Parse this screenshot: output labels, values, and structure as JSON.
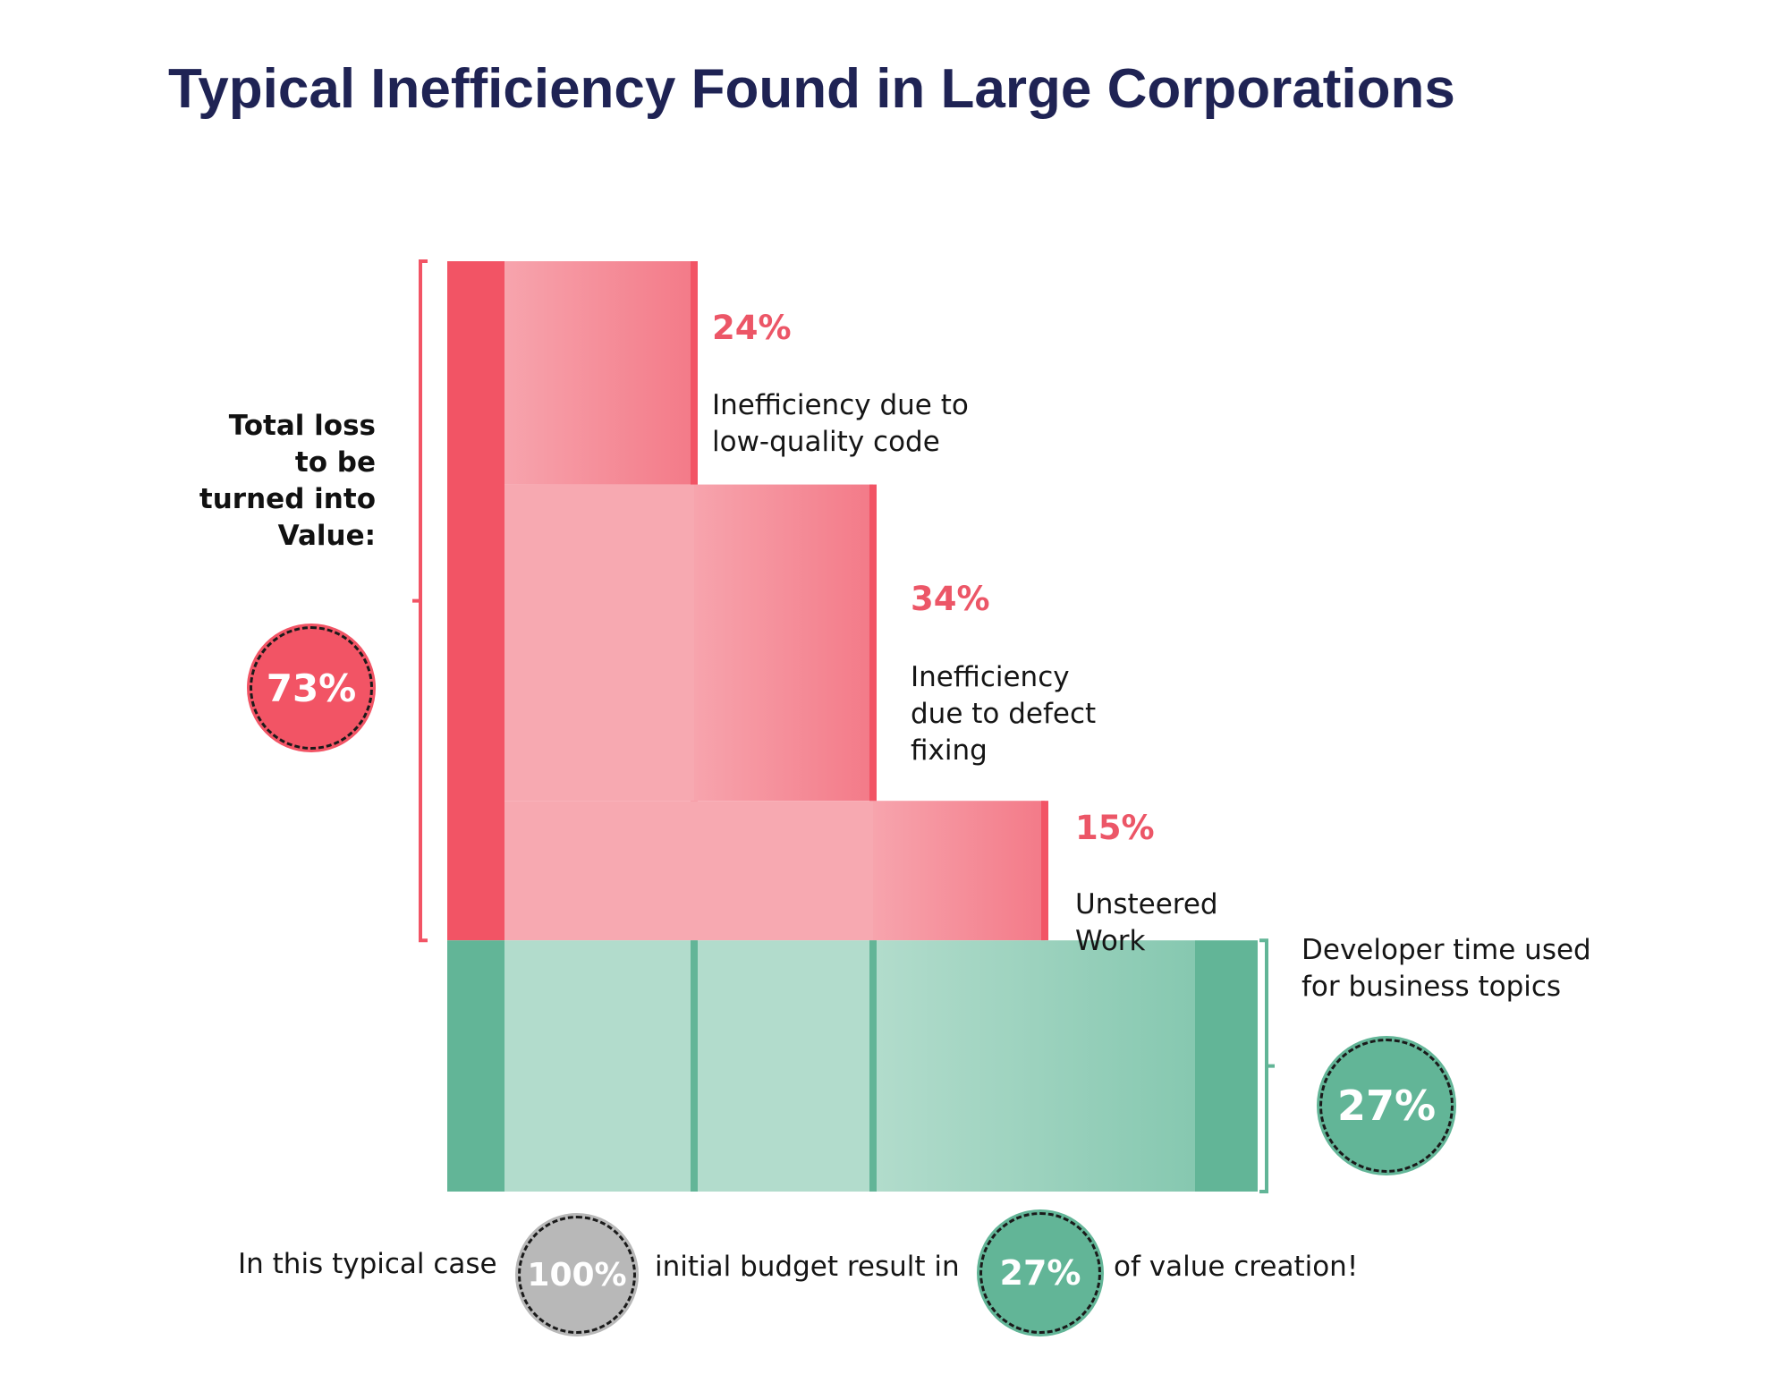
{
  "title": "Typical Inefficiency Found in Large Corporations",
  "loss_label": "Total loss\nto be\nturned into\nValue:",
  "loss_badge": "73%",
  "value_label": "Developer time used\nfor business topics",
  "value_badge": "27%",
  "footer": {
    "part1": "In this typical case",
    "badge1": "100%",
    "part2": "initial budget result in",
    "badge2": "27%",
    "part3": "of value creation!"
  },
  "colors": {
    "loss": "#f25465",
    "loss_light": "#f7a9b1",
    "value": "#62b597",
    "value_light": "#b2dccc",
    "title": "#1f2354",
    "neutral_badge": "#b8b8b8"
  },
  "chart_data": {
    "type": "bar",
    "subtype": "stacked-waterfall",
    "segments": [
      {
        "label": "Inefficiency due to low-quality code",
        "value": 24,
        "percent_label": "24%",
        "group": "loss"
      },
      {
        "label": "Inefficiency due to defect fixing",
        "value": 34,
        "percent_label": "34%",
        "group": "loss"
      },
      {
        "label": "Unsteered Work",
        "value": 15,
        "percent_label": "15%",
        "group": "loss"
      },
      {
        "label": "Developer time used for business topics",
        "value": 27,
        "percent_label": "27%",
        "group": "value"
      }
    ],
    "total": 100
  }
}
